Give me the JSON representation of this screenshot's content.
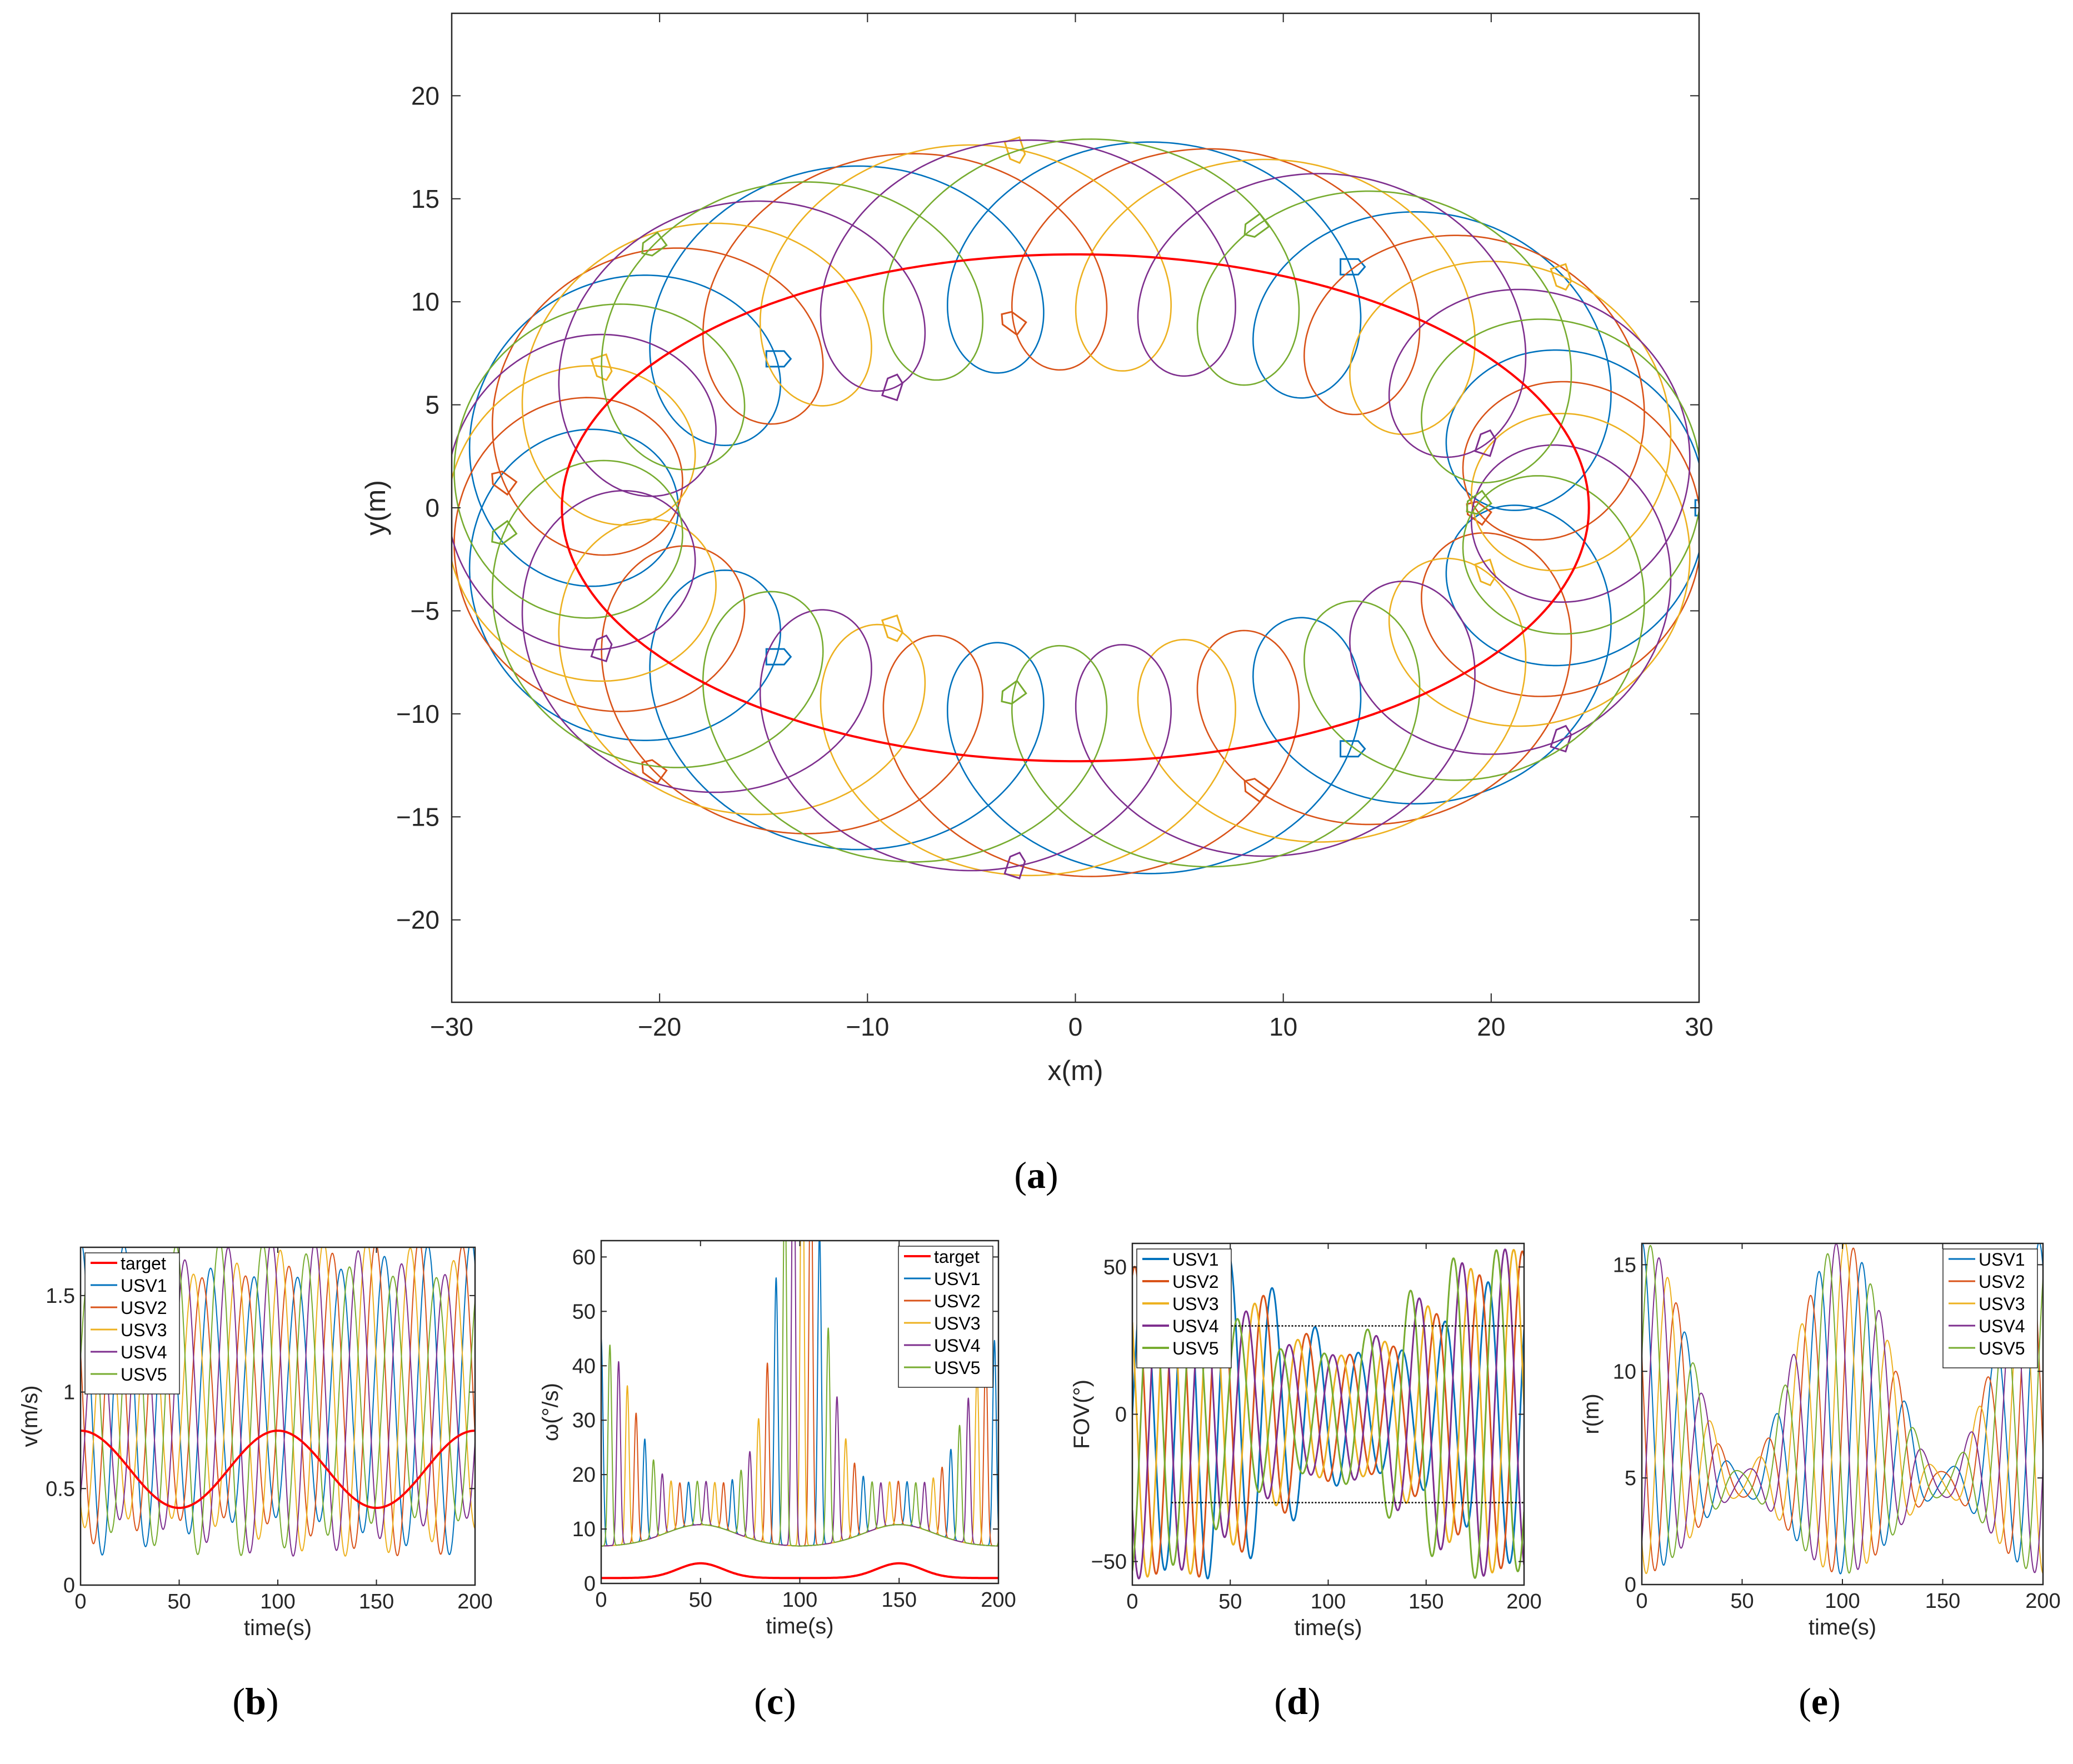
{
  "colors": {
    "usv1": "#0072BD",
    "usv2": "#D95319",
    "usv3": "#EDB120",
    "usv4": "#7E2F8E",
    "usv5": "#77AC30",
    "target": "#FF0000",
    "bounds": "#000000"
  },
  "chart_data": [
    {
      "id": "a",
      "type": "line",
      "caption_letter": "a",
      "xlabel": "x(m)",
      "ylabel": "y(m)",
      "xlim": [
        -30,
        30
      ],
      "ylim": [
        -24,
        24
      ],
      "xticks": [
        -30,
        -20,
        -10,
        0,
        10,
        20,
        30
      ],
      "yticks": [
        -20,
        -15,
        -10,
        -5,
        0,
        5,
        10,
        15,
        20
      ],
      "xtick_labels": [
        "−30",
        "−20",
        "−10",
        "0",
        "10",
        "20",
        "30"
      ],
      "ytick_labels": [
        "−20",
        "−15",
        "−10",
        "−5",
        "0",
        "5",
        "10",
        "15",
        "20"
      ],
      "grid": false,
      "target_path": {
        "shape": "ellipse",
        "center": [
          0,
          0
        ],
        "semi_axis_x": 24.7,
        "semi_axis_y": 12.3
      },
      "series": [
        {
          "key": "target",
          "kind": "ellipse",
          "a": 24.7,
          "b": 12.3
        },
        {
          "key": "usv1",
          "kind": "epicycle",
          "loop_radius": 5.6,
          "phase_deg": 0
        },
        {
          "key": "usv2",
          "kind": "epicycle",
          "loop_radius": 5.6,
          "phase_deg": 72
        },
        {
          "key": "usv3",
          "kind": "epicycle",
          "loop_radius": 5.6,
          "phase_deg": 144
        },
        {
          "key": "usv4",
          "kind": "epicycle",
          "loop_radius": 5.6,
          "phase_deg": 216
        },
        {
          "key": "usv5",
          "kind": "epicycle",
          "loop_radius": 5.6,
          "phase_deg": 288
        }
      ],
      "loops_per_orbit": 10
    },
    {
      "id": "b",
      "type": "line",
      "caption_letter": "b",
      "xlabel": "time(s)",
      "ylabel": "v(m/s)",
      "xlim": [
        0,
        200
      ],
      "ylim": [
        0,
        1.75
      ],
      "xticks": [
        0,
        50,
        100,
        150,
        200
      ],
      "yticks": [
        0,
        0.5,
        1,
        1.5
      ],
      "ytick_labels": [
        "0",
        "0.5",
        "1",
        "1.5"
      ],
      "legend_position": "top-left",
      "legend": [
        "target",
        "USV1",
        "USV2",
        "USV3",
        "USV4",
        "USV5"
      ],
      "target": {
        "mean": 0.6,
        "amplitude": 0.2,
        "period_s": 100,
        "peak_at_s": 0,
        "min": 0.4,
        "max": 0.8
      },
      "usv": {
        "oscillation_period_s": 22,
        "min_range": [
          0.15,
          0.45
        ],
        "max_range": [
          1.55,
          1.75
        ]
      }
    },
    {
      "id": "c",
      "type": "line",
      "caption_letter": "c",
      "xlabel": "time(s)",
      "ylabel": "ω(°/s)",
      "xlim": [
        0,
        200
      ],
      "ylim": [
        0,
        63
      ],
      "xticks": [
        0,
        50,
        100,
        150,
        200
      ],
      "yticks": [
        0,
        10,
        20,
        30,
        40,
        50,
        60
      ],
      "legend_position": "top-right",
      "legend": [
        "target",
        "USV1",
        "USV2",
        "USV3",
        "USV4",
        "USV5"
      ],
      "target": {
        "min": 1.0,
        "max": 3.7,
        "peaks_at_s": [
          50,
          150
        ]
      },
      "usv": {
        "baseline_min": 6.5,
        "spike_period_s": 22,
        "largest_spikes": [
          60,
          62
        ]
      }
    },
    {
      "id": "d",
      "type": "line",
      "caption_letter": "d",
      "xlabel": "time(s)",
      "ylabel": "FOV(°)",
      "xlim": [
        0,
        200
      ],
      "ylim": [
        -58,
        58
      ],
      "xticks": [
        0,
        50,
        100,
        150,
        200
      ],
      "yticks": [
        -50,
        0,
        50
      ],
      "ytick_labels": [
        "−50",
        "0",
        "50"
      ],
      "legend_position": "top-left",
      "legend": [
        "USV1",
        "USV2",
        "USV3",
        "USV4",
        "USV5"
      ],
      "fov_bounds": [
        -30,
        30
      ],
      "usv": {
        "oscillation_period_s": 22,
        "amplitude_range": [
          20,
          57
        ]
      }
    },
    {
      "id": "e",
      "type": "line",
      "caption_letter": "e",
      "xlabel": "time(s)",
      "ylabel": "r(m)",
      "xlim": [
        0,
        200
      ],
      "ylim": [
        0,
        16
      ],
      "xticks": [
        0,
        50,
        100,
        150,
        200
      ],
      "yticks": [
        0,
        5,
        10,
        15
      ],
      "legend_position": "top-right",
      "legend": [
        "USV1",
        "USV2",
        "USV3",
        "USV4",
        "USV5"
      ],
      "usv": {
        "oscillation_period_s": 22,
        "min_range": [
          0.0,
          3.5
        ],
        "max_range": [
          7.5,
          16.0
        ]
      }
    }
  ]
}
